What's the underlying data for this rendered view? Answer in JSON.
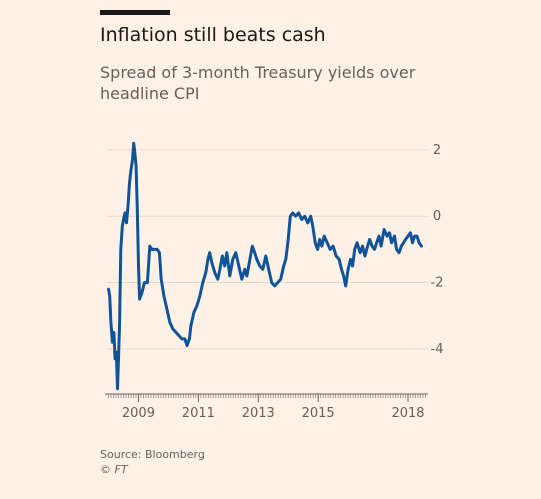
{
  "header": {
    "title": "Inflation still beats cash",
    "subtitle": "Spread of 3-month Treasury yields over headline CPI"
  },
  "footer": {
    "source": "Source: Bloomberg",
    "copyright": "© FT"
  },
  "colors": {
    "background": "#fff1e5",
    "line": "#0f5499",
    "grid": "#e6d9ce",
    "text": "#66605c"
  },
  "chart_data": {
    "type": "line",
    "title": "Inflation still beats cash",
    "subtitle": "Spread of 3-month Treasury yields over headline CPI",
    "xlabel": "",
    "ylabel": "",
    "xlim": [
      2007.95,
      2018.6
    ],
    "ylim": [
      -5.3,
      2.6
    ],
    "y_ticks": [
      2,
      0,
      -2,
      -4
    ],
    "y_tick_labels": [
      "2",
      "0",
      "-2",
      "-4"
    ],
    "x_ticks": [
      2009,
      2011,
      2013,
      2015,
      2018
    ],
    "x_tick_labels": [
      "2009",
      "2011",
      "2013",
      "2015",
      "2018"
    ],
    "grid": "horizontal",
    "y_axis_side": "right",
    "series": [
      {
        "points": [
          [
            2008.0,
            -2.2
          ],
          [
            2008.04,
            -2.4
          ],
          [
            2008.08,
            -3.2
          ],
          [
            2008.13,
            -3.8
          ],
          [
            2008.18,
            -3.5
          ],
          [
            2008.22,
            -4.3
          ],
          [
            2008.26,
            -4.1
          ],
          [
            2008.3,
            -5.2
          ],
          [
            2008.33,
            -4.4
          ],
          [
            2008.37,
            -3.2
          ],
          [
            2008.41,
            -1.0
          ],
          [
            2008.46,
            -0.3
          ],
          [
            2008.5,
            -0.1
          ],
          [
            2008.55,
            0.1
          ],
          [
            2008.6,
            -0.2
          ],
          [
            2008.65,
            0.3
          ],
          [
            2008.7,
            1.0
          ],
          [
            2008.75,
            1.4
          ],
          [
            2008.8,
            1.7
          ],
          [
            2008.84,
            2.2
          ],
          [
            2008.88,
            1.9
          ],
          [
            2008.92,
            1.5
          ],
          [
            2008.96,
            0.2
          ],
          [
            2009.0,
            -1.5
          ],
          [
            2009.04,
            -2.5
          ],
          [
            2009.12,
            -2.3
          ],
          [
            2009.2,
            -2.0
          ],
          [
            2009.3,
            -2.0
          ],
          [
            2009.38,
            -0.9
          ],
          [
            2009.45,
            -1.0
          ],
          [
            2009.55,
            -1.0
          ],
          [
            2009.63,
            -1.0
          ],
          [
            2009.7,
            -1.1
          ],
          [
            2009.76,
            -1.9
          ],
          [
            2009.85,
            -2.4
          ],
          [
            2009.95,
            -2.8
          ],
          [
            2010.05,
            -3.2
          ],
          [
            2010.15,
            -3.4
          ],
          [
            2010.25,
            -3.5
          ],
          [
            2010.35,
            -3.6
          ],
          [
            2010.45,
            -3.7
          ],
          [
            2010.55,
            -3.7
          ],
          [
            2010.62,
            -3.9
          ],
          [
            2010.7,
            -3.7
          ],
          [
            2010.75,
            -3.3
          ],
          [
            2010.85,
            -2.9
          ],
          [
            2010.95,
            -2.7
          ],
          [
            2011.05,
            -2.4
          ],
          [
            2011.15,
            -2.0
          ],
          [
            2011.25,
            -1.7
          ],
          [
            2011.32,
            -1.3
          ],
          [
            2011.38,
            -1.1
          ],
          [
            2011.45,
            -1.4
          ],
          [
            2011.55,
            -1.7
          ],
          [
            2011.65,
            -1.9
          ],
          [
            2011.72,
            -1.6
          ],
          [
            2011.8,
            -1.2
          ],
          [
            2011.88,
            -1.5
          ],
          [
            2011.95,
            -1.1
          ],
          [
            2012.05,
            -1.8
          ],
          [
            2012.15,
            -1.3
          ],
          [
            2012.25,
            -1.1
          ],
          [
            2012.35,
            -1.5
          ],
          [
            2012.45,
            -1.9
          ],
          [
            2012.55,
            -1.6
          ],
          [
            2012.62,
            -1.8
          ],
          [
            2012.7,
            -1.4
          ],
          [
            2012.8,
            -0.9
          ],
          [
            2012.88,
            -1.1
          ],
          [
            2012.95,
            -1.3
          ],
          [
            2013.05,
            -1.5
          ],
          [
            2013.15,
            -1.6
          ],
          [
            2013.25,
            -1.2
          ],
          [
            2013.35,
            -1.6
          ],
          [
            2013.45,
            -2.0
          ],
          [
            2013.55,
            -2.1
          ],
          [
            2013.65,
            -2.0
          ],
          [
            2013.75,
            -1.9
          ],
          [
            2013.85,
            -1.5
          ],
          [
            2013.92,
            -1.3
          ],
          [
            2014.0,
            -0.7
          ],
          [
            2014.07,
            0.0
          ],
          [
            2014.15,
            0.1
          ],
          [
            2014.25,
            0.0
          ],
          [
            2014.35,
            0.1
          ],
          [
            2014.45,
            -0.1
          ],
          [
            2014.55,
            0.0
          ],
          [
            2014.65,
            -0.2
          ],
          [
            2014.75,
            0.0
          ],
          [
            2014.82,
            -0.3
          ],
          [
            2014.9,
            -0.8
          ],
          [
            2014.98,
            -1.0
          ],
          [
            2015.05,
            -0.7
          ],
          [
            2015.12,
            -0.9
          ],
          [
            2015.2,
            -0.6
          ],
          [
            2015.3,
            -0.8
          ],
          [
            2015.4,
            -1.0
          ],
          [
            2015.5,
            -0.9
          ],
          [
            2015.6,
            -1.2
          ],
          [
            2015.7,
            -1.3
          ],
          [
            2015.78,
            -1.6
          ],
          [
            2015.85,
            -1.8
          ],
          [
            2015.92,
            -2.1
          ],
          [
            2016.0,
            -1.6
          ],
          [
            2016.08,
            -1.3
          ],
          [
            2016.15,
            -1.5
          ],
          [
            2016.22,
            -1.0
          ],
          [
            2016.3,
            -0.8
          ],
          [
            2016.4,
            -1.1
          ],
          [
            2016.48,
            -0.9
          ],
          [
            2016.56,
            -1.2
          ],
          [
            2016.65,
            -0.9
          ],
          [
            2016.72,
            -0.7
          ],
          [
            2016.8,
            -0.9
          ],
          [
            2016.88,
            -1.0
          ],
          [
            2016.95,
            -0.8
          ],
          [
            2017.03,
            -0.6
          ],
          [
            2017.1,
            -0.9
          ],
          [
            2017.2,
            -0.4
          ],
          [
            2017.3,
            -0.6
          ],
          [
            2017.38,
            -0.5
          ],
          [
            2017.45,
            -0.8
          ],
          [
            2017.55,
            -0.6
          ],
          [
            2017.62,
            -1.0
          ],
          [
            2017.7,
            -1.1
          ],
          [
            2017.78,
            -0.9
          ],
          [
            2017.85,
            -0.8
          ],
          [
            2017.92,
            -0.7
          ],
          [
            2018.0,
            -0.6
          ],
          [
            2018.08,
            -0.5
          ],
          [
            2018.15,
            -0.8
          ],
          [
            2018.22,
            -0.6
          ],
          [
            2018.3,
            -0.6
          ],
          [
            2018.37,
            -0.8
          ],
          [
            2018.45,
            -0.9
          ]
        ]
      }
    ]
  }
}
